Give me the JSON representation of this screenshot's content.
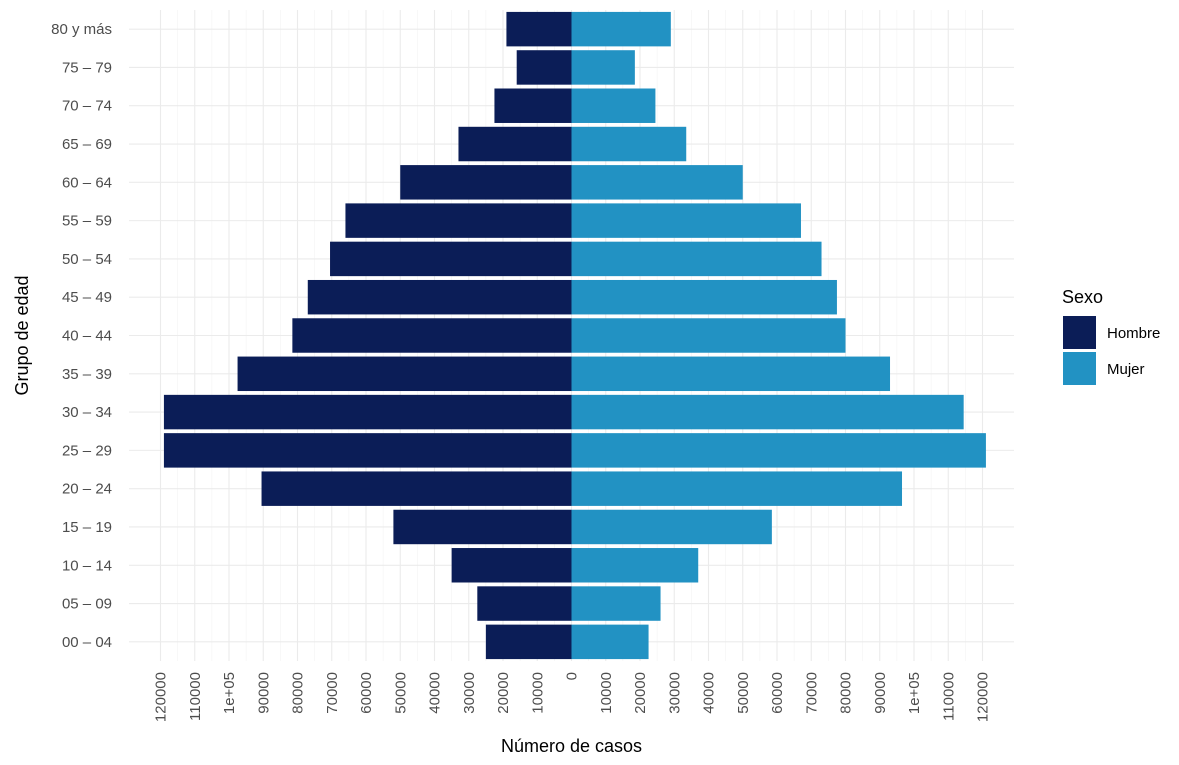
{
  "chart_data": {
    "type": "bar",
    "orientation": "horizontal",
    "subtype": "population-pyramid",
    "xlabel": "Número de casos",
    "ylabel": "Grupo de edad",
    "categories": [
      "00 – 04",
      "05 – 09",
      "10 – 14",
      "15 – 19",
      "20 – 24",
      "25 – 29",
      "30 – 34",
      "35 – 39",
      "40 – 44",
      "45 – 49",
      "50 – 54",
      "55 – 59",
      "60 – 64",
      "65 – 69",
      "70 – 74",
      "75 – 79",
      "80 y más"
    ],
    "series": [
      {
        "name": "Hombre",
        "color": "#0b1d57",
        "side": "left",
        "values": [
          25000,
          27500,
          35000,
          52000,
          90500,
          119000,
          119000,
          97500,
          81500,
          77000,
          70500,
          66000,
          50000,
          33000,
          22500,
          16000,
          19000
        ]
      },
      {
        "name": "Mujer",
        "color": "#2292c3",
        "side": "right",
        "values": [
          22500,
          26000,
          37000,
          58500,
          96500,
          121000,
          114500,
          93000,
          80000,
          77500,
          73000,
          67000,
          50000,
          33500,
          24500,
          18500,
          29000
        ]
      }
    ],
    "xlim": [
      -122000,
      122000
    ],
    "xticks": [
      -120000,
      -110000,
      -100000,
      -90000,
      -80000,
      -70000,
      -60000,
      -50000,
      -40000,
      -30000,
      -20000,
      -10000,
      0,
      10000,
      20000,
      30000,
      40000,
      50000,
      60000,
      70000,
      80000,
      90000,
      100000,
      110000,
      120000
    ],
    "xtick_labels": [
      "120000",
      "110000",
      "1e+05",
      "90000",
      "80000",
      "70000",
      "60000",
      "50000",
      "40000",
      "30000",
      "20000",
      "10000",
      "0",
      "10000",
      "20000",
      "30000",
      "40000",
      "50000",
      "60000",
      "70000",
      "80000",
      "90000",
      "1e+05",
      "110000",
      "120000"
    ],
    "grid": true,
    "legend": {
      "title": "Sexo",
      "position": "right",
      "entries": [
        "Hombre",
        "Mujer"
      ]
    }
  }
}
